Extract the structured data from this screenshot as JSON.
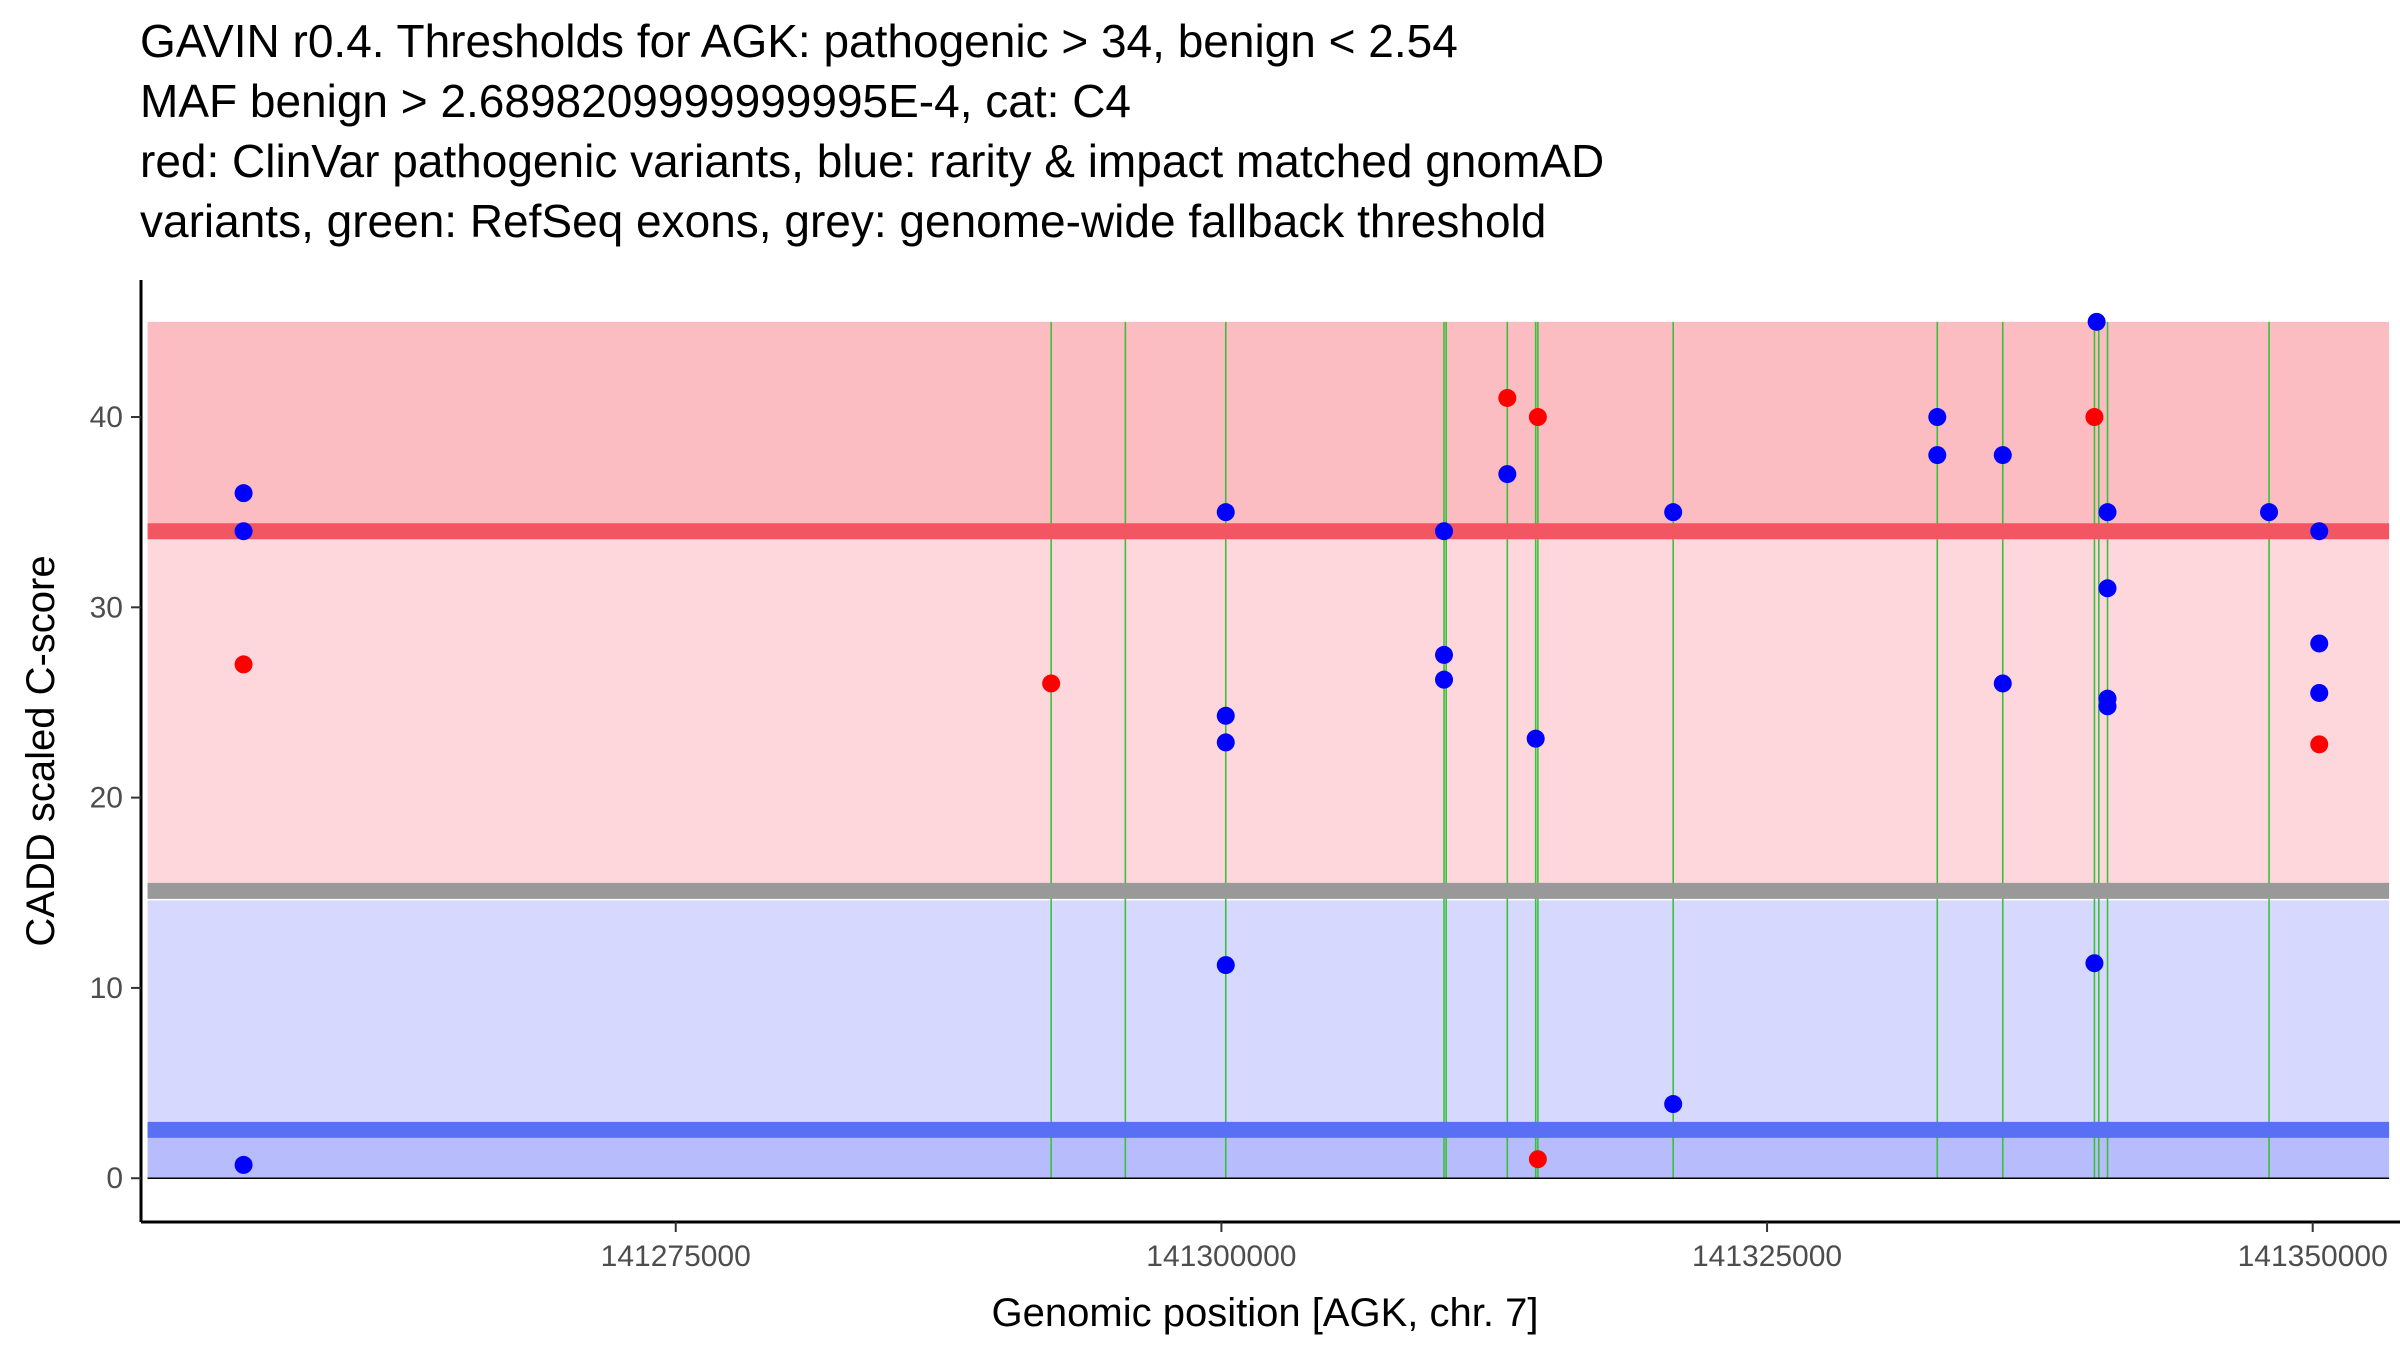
{
  "chart_data": {
    "type": "scatter",
    "title_lines": [
      "GAVIN r0.4. Thresholds for AGK: pathogenic > 34, benign < 2.54",
      "MAF benign > 2.6898209999999995E-4, cat: C4",
      "red: ClinVar pathogenic variants, blue: rarity & impact matched gnomAD",
      "variants, green: RefSeq exons, grey: genome-wide fallback threshold"
    ],
    "xlabel": "Genomic position [AGK, chr. 7]",
    "ylabel": "CADD scaled C-score",
    "xlim": [
      141250500,
      141354000
    ],
    "ylim": [
      -2.3,
      47.2
    ],
    "x_ticks": [
      141275000,
      141300000,
      141325000,
      141350000
    ],
    "x_tick_labels": [
      "141275000",
      "141300000",
      "141325000",
      "141350000"
    ],
    "y_ticks": [
      0,
      10,
      20,
      30,
      40
    ],
    "y_tick_labels": [
      "0",
      "10",
      "20",
      "30",
      "40"
    ],
    "x_min_data": 141250800,
    "x_max_data": 141353500,
    "thresholds": {
      "pathogenic": 34,
      "benign": 2.54,
      "genome_wide_fallback": 15.1,
      "pathogenic_region_top": 45,
      "pathogenic_low_region_bottom": 14.6
    },
    "regions": [
      {
        "name": "pathogenic-high",
        "from": 34,
        "to": 45,
        "color": "#fbbcc2"
      },
      {
        "name": "pathogenic-low",
        "from": 15.1,
        "to": 34,
        "color": "#fdd7dc"
      },
      {
        "name": "benign-high",
        "from": 2.54,
        "to": 14.6,
        "color": "#d6d9fd"
      },
      {
        "name": "benign-low",
        "from": 0,
        "to": 2.54,
        "color": "#b7bdfc"
      }
    ],
    "lines": [
      {
        "name": "pathogenic-threshold",
        "y": 34,
        "color": "#f25663"
      },
      {
        "name": "fallback-threshold",
        "y": 15.1,
        "color": "#999999"
      },
      {
        "name": "benign-threshold",
        "y": 2.54,
        "color": "#5a70f4"
      }
    ],
    "exons": [
      141292200,
      141295600,
      141300200,
      141310200,
      141310300,
      141313100,
      141314400,
      141314500,
      141320700,
      141332800,
      141335800,
      141340000,
      141340200,
      141340600,
      141348000
    ],
    "colors": {
      "clinvar": "#ff0000",
      "gnomad": "#0000ff",
      "exon": "#39c239"
    },
    "series": [
      {
        "name": "ClinVar pathogenic variants",
        "color": "#ff0000",
        "points": [
          {
            "x": 141255200,
            "y": 27
          },
          {
            "x": 141292200,
            "y": 26
          },
          {
            "x": 141313100,
            "y": 41
          },
          {
            "x": 141314500,
            "y": 40
          },
          {
            "x": 141314500,
            "y": 1
          },
          {
            "x": 141340000,
            "y": 40
          },
          {
            "x": 141350300,
            "y": 22.8
          }
        ]
      },
      {
        "name": "rarity & impact matched gnomAD variants",
        "color": "#0000ff",
        "points": [
          {
            "x": 141255200,
            "y": 36
          },
          {
            "x": 141255200,
            "y": 34
          },
          {
            "x": 141255200,
            "y": 0.7
          },
          {
            "x": 141300200,
            "y": 35
          },
          {
            "x": 141300200,
            "y": 24.3
          },
          {
            "x": 141300200,
            "y": 22.9
          },
          {
            "x": 141300200,
            "y": 11.2
          },
          {
            "x": 141310200,
            "y": 34
          },
          {
            "x": 141310200,
            "y": 27.5
          },
          {
            "x": 141310200,
            "y": 26.2
          },
          {
            "x": 141313100,
            "y": 37
          },
          {
            "x": 141314400,
            "y": 23.1
          },
          {
            "x": 141320700,
            "y": 35
          },
          {
            "x": 141320700,
            "y": 3.9
          },
          {
            "x": 141332800,
            "y": 40
          },
          {
            "x": 141332800,
            "y": 38
          },
          {
            "x": 141335800,
            "y": 38
          },
          {
            "x": 141335800,
            "y": 26
          },
          {
            "x": 141340100,
            "y": 45
          },
          {
            "x": 141340000,
            "y": 11.3
          },
          {
            "x": 141340600,
            "y": 35
          },
          {
            "x": 141340600,
            "y": 31
          },
          {
            "x": 141340600,
            "y": 25.2
          },
          {
            "x": 141340600,
            "y": 24.8
          },
          {
            "x": 141348000,
            "y": 35
          },
          {
            "x": 141350300,
            "y": 34
          },
          {
            "x": 141350300,
            "y": 28.1
          },
          {
            "x": 141350300,
            "y": 25.5
          }
        ]
      }
    ]
  }
}
